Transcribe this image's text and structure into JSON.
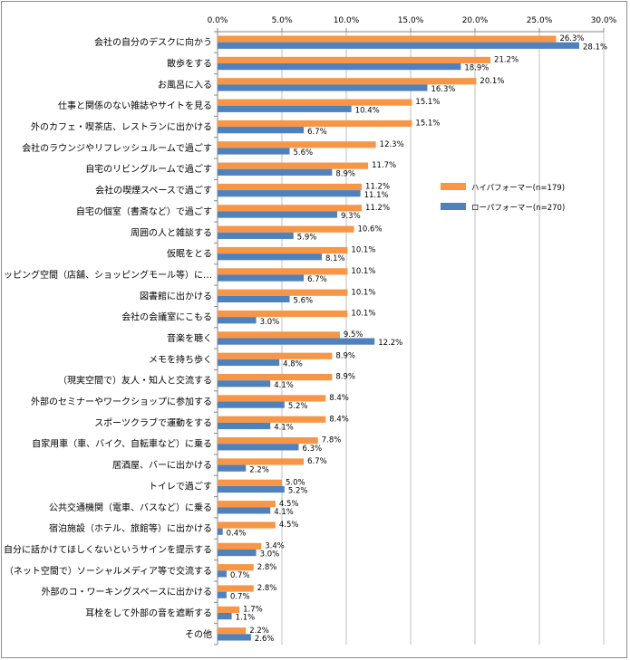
{
  "chart_data": {
    "type": "bar",
    "orientation": "horizontal",
    "xlim": [
      0,
      30
    ],
    "x_ticks": [
      "0.0%",
      "5.0%",
      "10.0%",
      "15.0%",
      "20.0%",
      "25.0%",
      "30.0%"
    ],
    "grid": true,
    "legend_position": "right",
    "colors": [
      "#f79646",
      "#4f81bd"
    ],
    "categories": [
      "会社の自分のデスクに向かう",
      "散歩をする",
      "お風呂に入る",
      "仕事と関係のない雑誌やサイトを見る",
      "外のカフェ・喫茶店、レストランに出かける",
      "会社のラウンジやリフレッシュルームで過ごす",
      "自宅のリビングルームで過ごす",
      "会社の喫煙スペースで過ごす",
      "自宅の個室（書斎など）で過ごす",
      "周囲の人と雑談する",
      "仮眠をとる",
      "ショッピング空間（店舗、ショッピングモール等）に…",
      "図書館に出かける",
      "会社の会議室にこもる",
      "音楽を聴く",
      "メモを持ち歩く",
      "（現実空間で）友人・知人と交流する",
      "外部のセミナーやワークショップに参加する",
      "スポーツクラブで運動をする",
      "自家用車（車、バイク、自転車など）に乗る",
      "居酒屋、バーに出かける",
      "トイレで過ごす",
      "公共交通機関（電車、バスなど）に乗る",
      "宿泊施設（ホテル、旅館等）に出かける",
      "自分に話かけてほしくないというサインを提示する",
      "（ネット空間で）ソーシャルメディア等で交流する",
      "外部のコ・ワーキングスペースに出かける",
      "耳栓をして外部の音を遮断する",
      "その他"
    ],
    "series": [
      {
        "name": "ハイパフォーマー(n=179)",
        "values": [
          26.3,
          21.2,
          20.1,
          15.1,
          15.1,
          12.3,
          11.7,
          11.2,
          11.2,
          10.6,
          10.1,
          10.1,
          10.1,
          10.1,
          9.5,
          8.9,
          8.9,
          8.4,
          8.4,
          7.8,
          6.7,
          5.0,
          4.5,
          4.5,
          3.4,
          2.8,
          2.8,
          1.7,
          2.2
        ],
        "labels": [
          "26.3%",
          "21.2%",
          "20.1%",
          "15.1%",
          "15.1%",
          "12.3%",
          "11.7%",
          "11.2%",
          "11.2%",
          "10.6%",
          "10.1%",
          "10.1%",
          "10.1%",
          "10.1%",
          "9.5%",
          "8.9%",
          "8.9%",
          "8.4%",
          "8.4%",
          "7.8%",
          "6.7%",
          "5.0%",
          "4.5%",
          "4.5%",
          "3.4%",
          "2.8%",
          "2.8%",
          "1.7%",
          "2.2%"
        ]
      },
      {
        "name": "ローパフォーマー(n=270)",
        "values": [
          28.1,
          18.9,
          16.3,
          10.4,
          6.7,
          5.6,
          8.9,
          11.1,
          9.3,
          5.9,
          8.1,
          6.7,
          5.6,
          3.0,
          12.2,
          4.8,
          4.1,
          5.2,
          4.1,
          6.3,
          2.2,
          5.2,
          4.1,
          0.4,
          3.0,
          0.7,
          0.7,
          1.1,
          2.6
        ],
        "labels": [
          "28.1%",
          "18.9%",
          "16.3%",
          "10.4%",
          "6.7%",
          "5.6%",
          "8.9%",
          "11.1%",
          "9.3%",
          "5.9%",
          "8.1%",
          "6.7%",
          "5.6%",
          "3.0%",
          "12.2%",
          "4.8%",
          "4.1%",
          "5.2%",
          "4.1%",
          "6.3%",
          "2.2%",
          "5.2%",
          "4.1%",
          "0.4%",
          "3.0%",
          "0.7%",
          "0.7%",
          "1.1%",
          "2.6%"
        ]
      }
    ]
  }
}
